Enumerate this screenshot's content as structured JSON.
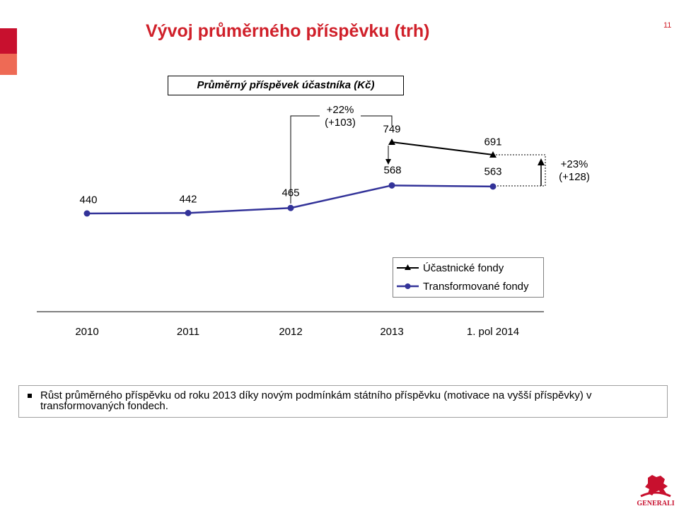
{
  "header": {
    "title": "Vývoj průměrného příspěvku (trh)",
    "page_number": "11",
    "accent_color": "#d0202a"
  },
  "chart_data": {
    "type": "line",
    "title": "Průměrný příspěvek účastníka (Kč)",
    "categories": [
      "2010",
      "2011",
      "2012",
      "2013",
      "1. pol 2014"
    ],
    "series": [
      {
        "name": "Účastnické fondy",
        "values": [
          null,
          null,
          null,
          749,
          691
        ],
        "color": "#000000",
        "marker": "triangle"
      },
      {
        "name": "Transformované fondy",
        "values": [
          440,
          442,
          465,
          568,
          563
        ],
        "color": "#333399",
        "marker": "circle"
      }
    ],
    "legend_position": "bottom-right",
    "grid": false,
    "annotations": [
      {
        "text": "+22%",
        "text2": "(+103)"
      },
      {
        "text": "+23%",
        "text2": "(+128)"
      }
    ]
  },
  "note": {
    "text": "Růst průměrného příspěvku od roku 2013 díky novým podmínkám státního příspěvku (motivace na vyšší příspěvky) v transformovaných fondech."
  },
  "logo": {
    "icon": "generali-lion-icon",
    "text": "GENERALI"
  }
}
